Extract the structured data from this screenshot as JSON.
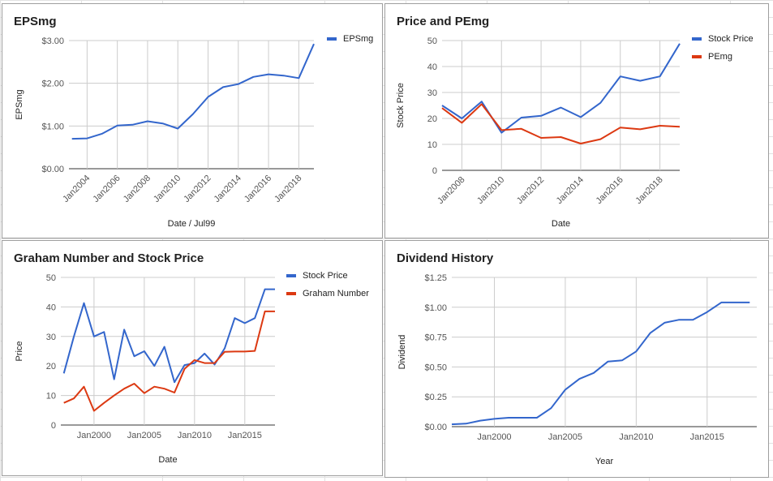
{
  "colors": {
    "blue": "#3366cc",
    "red": "#dc3912"
  },
  "chart_data": [
    {
      "id": "epsmg",
      "type": "line",
      "title": "EPSmg",
      "xlabel": "Date / Jul99",
      "ylabel": "EPSmg",
      "legend_position": "right",
      "grid": true,
      "x_ticks": [
        "Jan2004",
        "Jan2006",
        "Jan2008",
        "Jan2010",
        "Jan2012",
        "Jan2014",
        "Jan2016",
        "Jan2018"
      ],
      "y_ticks": [
        "$0.00",
        "$1.00",
        "$2.00",
        "$3.00"
      ],
      "xlim": [
        2002.8,
        2019.0
      ],
      "ylim": [
        0,
        3
      ],
      "series": [
        {
          "name": "EPSmg",
          "color": "#3366cc",
          "x": [
            2003.0,
            2004.0,
            2005.0,
            2006.0,
            2007.0,
            2008.0,
            2009.0,
            2010.0,
            2011.0,
            2012.0,
            2013.0,
            2014.0,
            2015.0,
            2016.0,
            2017.0,
            2018.0,
            2019.0
          ],
          "y": [
            0.7,
            0.71,
            0.82,
            1.01,
            1.03,
            1.11,
            1.06,
            0.94,
            1.28,
            1.68,
            1.91,
            1.98,
            2.15,
            2.21,
            2.18,
            2.12,
            2.92
          ]
        }
      ]
    },
    {
      "id": "price-pemg",
      "type": "line",
      "title": "Price and PEmg",
      "xlabel": "Date",
      "ylabel": "Stock Price",
      "legend_position": "right",
      "grid": true,
      "x_ticks": [
        "Jan2008",
        "Jan2010",
        "Jan2012",
        "Jan2014",
        "Jan2016",
        "Jan2018"
      ],
      "y_ticks": [
        "0",
        "10",
        "20",
        "30",
        "40",
        "50"
      ],
      "xlim": [
        2007.0,
        2019.0
      ],
      "ylim": [
        0,
        50
      ],
      "series": [
        {
          "name": "Stock Price",
          "color": "#3366cc",
          "x": [
            2007.0,
            2008.0,
            2009.0,
            2010.0,
            2011.0,
            2012.0,
            2013.0,
            2014.0,
            2015.0,
            2016.0,
            2017.0,
            2018.0,
            2019.0
          ],
          "y": [
            25.0,
            20.0,
            26.5,
            14.5,
            20.3,
            21.0,
            24.2,
            20.5,
            26.0,
            36.2,
            34.5,
            36.2,
            48.8
          ]
        },
        {
          "name": "PEmg",
          "color": "#dc3912",
          "x": [
            2007.0,
            2008.0,
            2009.0,
            2010.0,
            2011.0,
            2012.0,
            2013.0,
            2014.0,
            2015.0,
            2016.0,
            2017.0,
            2018.0,
            2019.0
          ],
          "y": [
            24.0,
            18.3,
            25.5,
            15.5,
            16.0,
            12.5,
            12.8,
            10.3,
            12.0,
            16.5,
            15.8,
            17.2,
            16.8
          ]
        }
      ]
    },
    {
      "id": "graham",
      "type": "line",
      "title": "Graham Number and Stock Price",
      "xlabel": "Date",
      "ylabel": "Price",
      "legend_position": "right",
      "grid": true,
      "x_ticks": [
        "Jan2000",
        "Jan2005",
        "Jan2010",
        "Jan2015"
      ],
      "y_ticks": [
        "0",
        "10",
        "20",
        "30",
        "40",
        "50"
      ],
      "xlim": [
        1996.7,
        2018.0
      ],
      "ylim": [
        0,
        50
      ],
      "series": [
        {
          "name": "Stock Price",
          "color": "#3366cc",
          "x": [
            1997.0,
            1998.0,
            1999.0,
            2000.0,
            2001.0,
            2002.0,
            2003.0,
            2004.0,
            2005.0,
            2006.0,
            2007.0,
            2008.0,
            2009.0,
            2010.0,
            2011.0,
            2012.0,
            2013.0,
            2014.0,
            2015.0,
            2016.0,
            2017.0,
            2018.0
          ],
          "y": [
            17.5,
            30.0,
            41.3,
            30.0,
            31.5,
            15.5,
            32.3,
            23.3,
            25.0,
            20.0,
            26.5,
            14.5,
            20.3,
            21.0,
            24.2,
            20.5,
            26.0,
            36.2,
            34.5,
            36.2,
            46.0,
            46.0
          ]
        },
        {
          "name": "Graham Number",
          "color": "#dc3912",
          "x": [
            1997.0,
            1998.0,
            1999.0,
            2000.0,
            2001.0,
            2002.0,
            2003.0,
            2004.0,
            2005.0,
            2006.0,
            2007.0,
            2008.0,
            2009.0,
            2010.0,
            2011.0,
            2012.0,
            2013.0,
            2014.0,
            2015.0,
            2016.0,
            2017.0,
            2018.0
          ],
          "y": [
            7.5,
            9.0,
            13.0,
            4.8,
            7.5,
            10.0,
            12.3,
            14.0,
            10.8,
            13.0,
            12.3,
            11.0,
            19.0,
            22.0,
            21.0,
            21.0,
            24.8,
            24.9,
            24.9,
            25.1,
            38.5,
            38.5
          ]
        }
      ]
    },
    {
      "id": "dividend",
      "type": "line",
      "title": "Dividend History",
      "xlabel": "Year",
      "ylabel": "Dividend",
      "legend_position": "none",
      "grid": true,
      "x_ticks": [
        "Jan2000",
        "Jan2005",
        "Jan2010",
        "Jan2015"
      ],
      "y_ticks": [
        "$0.00",
        "$0.25",
        "$0.50",
        "$0.75",
        "$1.00",
        "$1.25"
      ],
      "xlim": [
        1997.0,
        2018.5
      ],
      "ylim": [
        0,
        1.25
      ],
      "series": [
        {
          "name": "",
          "color": "#3366cc",
          "x": [
            1997.0,
            1998.0,
            1999.0,
            2000.0,
            2001.0,
            2002.0,
            2003.0,
            2004.0,
            2005.0,
            2006.0,
            2007.0,
            2008.0,
            2009.0,
            2010.0,
            2011.0,
            2012.0,
            2013.0,
            2014.0,
            2015.0,
            2016.0,
            2017.0,
            2018.0
          ],
          "y": [
            0.02,
            0.025,
            0.05,
            0.065,
            0.075,
            0.075,
            0.075,
            0.155,
            0.31,
            0.4,
            0.45,
            0.545,
            0.555,
            0.63,
            0.785,
            0.87,
            0.895,
            0.895,
            0.96,
            1.04,
            1.04,
            1.04
          ]
        }
      ]
    }
  ]
}
